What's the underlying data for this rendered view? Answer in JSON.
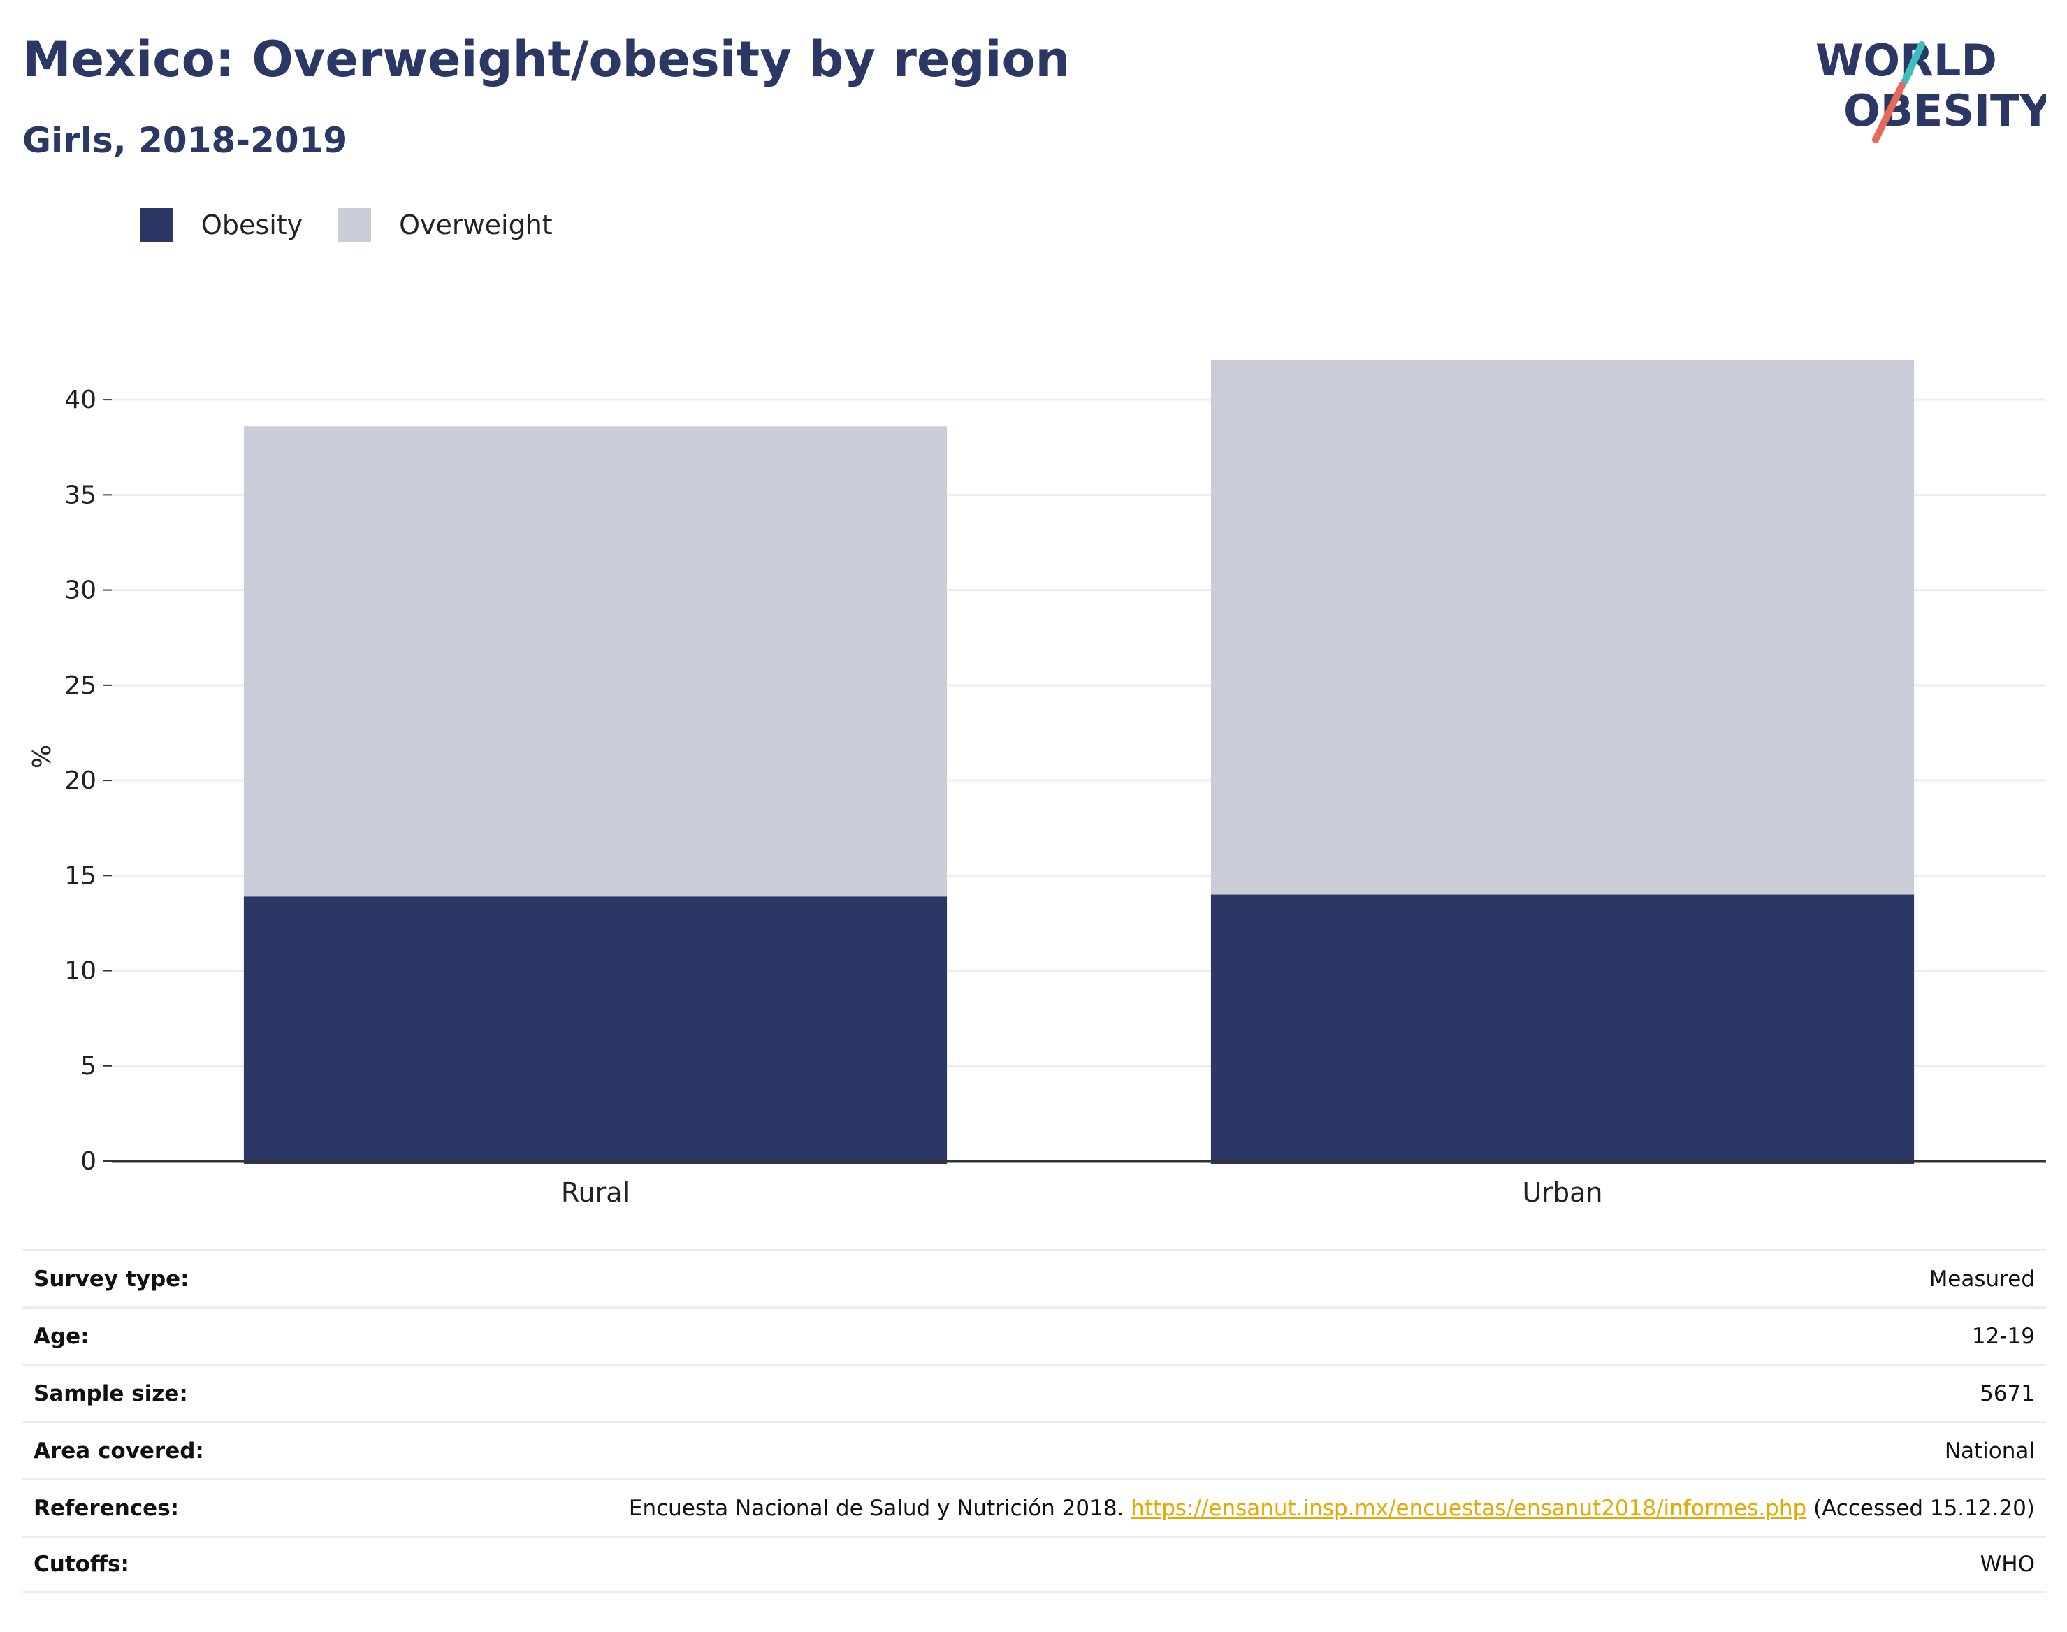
{
  "header": {
    "title": "Mexico: Overweight/obesity by region",
    "subtitle": "Girls, 2018-2019"
  },
  "logo": {
    "line1": "WORLD",
    "line2": "OBESITY",
    "accent_colors": [
      "#3bbfbf",
      "#e8685a"
    ]
  },
  "legend": [
    {
      "label": "Obesity",
      "color": "#2b3764"
    },
    {
      "label": "Overweight",
      "color": "#cacdd8"
    }
  ],
  "chart_data": {
    "type": "bar",
    "stacked": true,
    "categories": [
      "Rural",
      "Urban"
    ],
    "series": [
      {
        "name": "Obesity",
        "values": [
          13.9,
          14.0
        ],
        "color": "#2b3764"
      },
      {
        "name": "Overweight",
        "values": [
          24.7,
          28.1
        ],
        "color": "#cacdd8"
      }
    ],
    "ylabel": "%",
    "ylim": [
      0,
      42.5
    ],
    "yticks": [
      0,
      5,
      10,
      15,
      20,
      25,
      30,
      35,
      40
    ],
    "grid": true,
    "legend_position": "top-left"
  },
  "info": {
    "survey_type": {
      "label": "Survey type:",
      "value": "Measured"
    },
    "age": {
      "label": "Age:",
      "value": "12-19"
    },
    "sample_size": {
      "label": "Sample size:",
      "value": "5671"
    },
    "area_covered": {
      "label": "Area covered:",
      "value": "National"
    },
    "references": {
      "label": "References:",
      "text": "Encuesta Nacional de Salud y Nutrición 2018.",
      "link": "https://ensanut.insp.mx/encuestas/ensanut2018/informes.php",
      "suffix": "(Accessed 15.12.20)"
    },
    "cutoffs": {
      "label": "Cutoffs:",
      "value": "WHO"
    }
  }
}
